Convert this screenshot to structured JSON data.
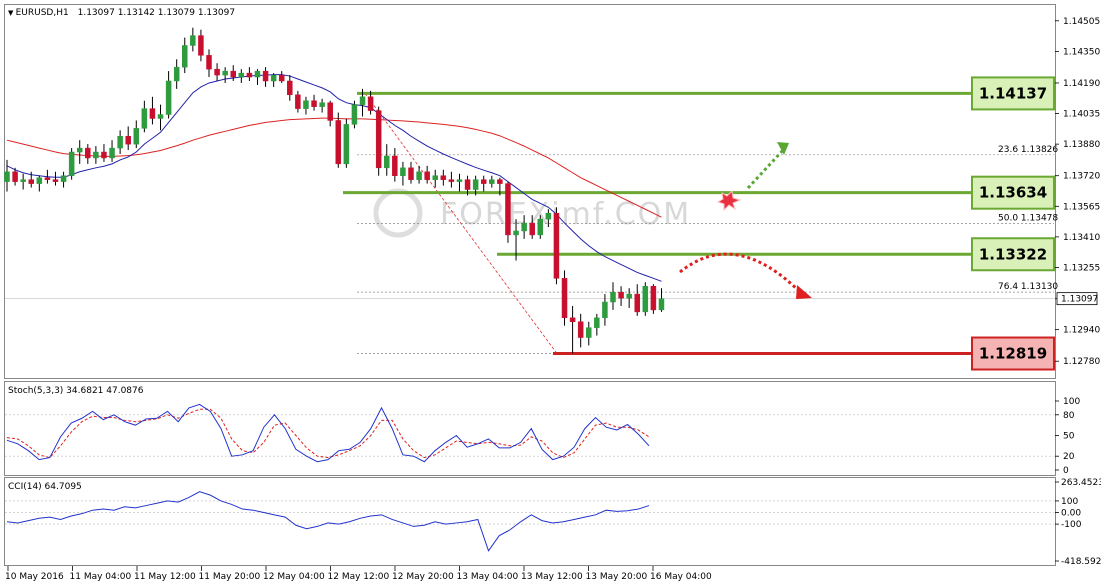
{
  "main_panel": {
    "header": {
      "symbol": "EURUSD,H1",
      "ohlc": "1.13097 1.13142 1.13079 1.13097"
    },
    "price_ticks": [
      "1.14505",
      "1.14350",
      "1.14190",
      "1.14035",
      "1.13880",
      "1.13720",
      "1.13565",
      "1.13410",
      "1.13255",
      "1.13097",
      "1.12940",
      "1.12780"
    ],
    "current_price": "1.13097",
    "fib_labels": [
      "23.6  1.13826",
      "50.0  1.13478",
      "76.4  1.13130"
    ],
    "levels": [
      {
        "label": "1.14137",
        "price": 1.14137,
        "color": "#6aa832",
        "box": "#d9f0b8"
      },
      {
        "label": "1.13634",
        "price": 1.13634,
        "color": "#6aa832",
        "box": "#d9f0b8"
      },
      {
        "label": "1.13322",
        "price": 1.13322,
        "color": "#6aa832",
        "box": "#d9f0b8"
      },
      {
        "label": "1.12819",
        "price": 1.12819,
        "color": "#cc2222",
        "box": "#f6b3b3"
      }
    ],
    "watermark": "FOREXimf.COM"
  },
  "stoch_panel": {
    "header": "Stoch(5,3,3) 34.6821 47.0876",
    "ticks": [
      "100",
      "80",
      "50",
      "20",
      "0"
    ]
  },
  "cci_panel": {
    "header": "CCI(14) 64.7095",
    "ticks": [
      "263.4523",
      "100",
      "0.00",
      "-100",
      "-418.5922"
    ]
  },
  "time_axis": [
    "10 May 2016",
    "11 May 04:00",
    "11 May 12:00",
    "11 May 20:00",
    "12 May 04:00",
    "12 May 12:00",
    "12 May 20:00",
    "13 May 04:00",
    "13 May 12:00",
    "13 May 20:00",
    "16 May 04:00"
  ],
  "colors": {
    "bull": "#2e9b3e",
    "bear": "#c8102e",
    "ma_fast": "#2222aa",
    "ma_slow": "#dd2222",
    "stoch_main": "#2233cc",
    "stoch_signal": "#dd2222",
    "cci": "#2233cc",
    "arrow_up": "#5aa832",
    "arrow_down": "#e02020"
  },
  "chart_data": {
    "type": "candlestick",
    "candles": [
      [
        1.1369,
        1.138,
        1.1364,
        1.1374
      ],
      [
        1.1374,
        1.1376,
        1.1367,
        1.1369
      ],
      [
        1.1369,
        1.1373,
        1.1365,
        1.137
      ],
      [
        1.137,
        1.1374,
        1.1366,
        1.1368
      ],
      [
        1.1368,
        1.1372,
        1.1364,
        1.1371
      ],
      [
        1.1371,
        1.1375,
        1.1368,
        1.137
      ],
      [
        1.137,
        1.1374,
        1.1367,
        1.1369
      ],
      [
        1.1369,
        1.1374,
        1.1366,
        1.1372
      ],
      [
        1.1372,
        1.1386,
        1.137,
        1.1384
      ],
      [
        1.1384,
        1.139,
        1.1378,
        1.1386
      ],
      [
        1.1386,
        1.1388,
        1.1378,
        1.1381
      ],
      [
        1.1381,
        1.1387,
        1.1378,
        1.1384
      ],
      [
        1.1384,
        1.1388,
        1.1379,
        1.1381
      ],
      [
        1.1381,
        1.139,
        1.1379,
        1.1386
      ],
      [
        1.1386,
        1.1395,
        1.1383,
        1.1392
      ],
      [
        1.1392,
        1.1397,
        1.1385,
        1.1388
      ],
      [
        1.1388,
        1.14,
        1.1386,
        1.1396
      ],
      [
        1.1396,
        1.141,
        1.1394,
        1.1406
      ],
      [
        1.1406,
        1.1412,
        1.1398,
        1.1401
      ],
      [
        1.1401,
        1.1408,
        1.1395,
        1.1403
      ],
      [
        1.1403,
        1.1425,
        1.1401,
        1.142
      ],
      [
        1.142,
        1.1431,
        1.1416,
        1.1427
      ],
      [
        1.1427,
        1.1442,
        1.1424,
        1.1438
      ],
      [
        1.1438,
        1.1447,
        1.1435,
        1.1443
      ],
      [
        1.1443,
        1.1446,
        1.143,
        1.1433
      ],
      [
        1.1433,
        1.1436,
        1.1422,
        1.1426
      ],
      [
        1.1426,
        1.1429,
        1.142,
        1.1423
      ],
      [
        1.1423,
        1.1427,
        1.1419,
        1.1425
      ],
      [
        1.1425,
        1.1428,
        1.142,
        1.1422
      ],
      [
        1.1422,
        1.1426,
        1.1419,
        1.1424
      ],
      [
        1.1424,
        1.1427,
        1.142,
        1.1422
      ],
      [
        1.1422,
        1.1426,
        1.1418,
        1.1425
      ],
      [
        1.1425,
        1.1427,
        1.1417,
        1.142
      ],
      [
        1.142,
        1.1424,
        1.1417,
        1.1423
      ],
      [
        1.1423,
        1.1425,
        1.1419,
        1.142
      ],
      [
        1.142,
        1.1423,
        1.141,
        1.1413
      ],
      [
        1.1413,
        1.1415,
        1.1404,
        1.1406
      ],
      [
        1.1406,
        1.1412,
        1.1403,
        1.141
      ],
      [
        1.141,
        1.1413,
        1.1405,
        1.1407
      ],
      [
        1.1407,
        1.1411,
        1.1404,
        1.1409
      ],
      [
        1.1409,
        1.141,
        1.1397,
        1.14
      ],
      [
        1.14,
        1.1404,
        1.1376,
        1.1378
      ],
      [
        1.1378,
        1.1401,
        1.1376,
        1.1398
      ],
      [
        1.1398,
        1.141,
        1.1396,
        1.1408
      ],
      [
        1.1408,
        1.1416,
        1.1402,
        1.1412
      ],
      [
        1.1412,
        1.1415,
        1.1403,
        1.1405
      ],
      [
        1.1405,
        1.1407,
        1.1372,
        1.1376
      ],
      [
        1.1376,
        1.1388,
        1.1372,
        1.1382
      ],
      [
        1.1382,
        1.1386,
        1.1369,
        1.1372
      ],
      [
        1.1372,
        1.1379,
        1.1367,
        1.1376
      ],
      [
        1.1376,
        1.1379,
        1.1368,
        1.137
      ],
      [
        1.137,
        1.1377,
        1.1368,
        1.1374
      ],
      [
        1.1374,
        1.1377,
        1.1368,
        1.137
      ],
      [
        1.137,
        1.1375,
        1.1366,
        1.1372
      ],
      [
        1.1372,
        1.1375,
        1.1367,
        1.137
      ],
      [
        1.137,
        1.1374,
        1.1366,
        1.1369
      ],
      [
        1.1369,
        1.1373,
        1.1364,
        1.137
      ],
      [
        1.137,
        1.1372,
        1.1362,
        1.1365
      ],
      [
        1.1365,
        1.1372,
        1.1362,
        1.137
      ],
      [
        1.137,
        1.1372,
        1.1364,
        1.1368
      ],
      [
        1.1368,
        1.1372,
        1.1366,
        1.137
      ],
      [
        1.137,
        1.1371,
        1.1362,
        1.1368
      ],
      [
        1.1368,
        1.1369,
        1.1338,
        1.1342
      ],
      [
        1.1342,
        1.135,
        1.1329,
        1.1344
      ],
      [
        1.1344,
        1.1352,
        1.134,
        1.1348
      ],
      [
        1.1348,
        1.1352,
        1.134,
        1.1342
      ],
      [
        1.1342,
        1.1352,
        1.134,
        1.135
      ],
      [
        1.135,
        1.1355,
        1.1346,
        1.1353
      ],
      [
        1.1353,
        1.1356,
        1.1317,
        1.132
      ],
      [
        1.132,
        1.1324,
        1.1296,
        1.13
      ],
      [
        1.13,
        1.1306,
        1.1282,
        1.1298
      ],
      [
        1.1298,
        1.1302,
        1.1285,
        1.129
      ],
      [
        1.129,
        1.1298,
        1.1286,
        1.1295
      ],
      [
        1.1295,
        1.1302,
        1.1291,
        1.13
      ],
      [
        1.13,
        1.1312,
        1.1296,
        1.1308
      ],
      [
        1.1308,
        1.1318,
        1.1304,
        1.1313
      ],
      [
        1.1313,
        1.1316,
        1.1306,
        1.131
      ],
      [
        1.131,
        1.1315,
        1.1305,
        1.1312
      ],
      [
        1.1312,
        1.1317,
        1.1301,
        1.1303
      ],
      [
        1.1303,
        1.1318,
        1.1301,
        1.1316
      ],
      [
        1.1316,
        1.1317,
        1.1302,
        1.1304
      ],
      [
        1.1304,
        1.1315,
        1.1303,
        1.13097
      ]
    ],
    "ma_fast": [
      1.1377,
      1.1375,
      1.13735,
      1.13725,
      1.1372,
      1.13715,
      1.13712,
      1.13712,
      1.13725,
      1.1374,
      1.1375,
      1.1376,
      1.13768,
      1.1378,
      1.138,
      1.13815,
      1.1384,
      1.1388,
      1.1391,
      1.1394,
      1.1399,
      1.1404,
      1.1409,
      1.1414,
      1.1417,
      1.1419,
      1.142,
      1.1421,
      1.14215,
      1.1422,
      1.14225,
      1.14228,
      1.1423,
      1.14232,
      1.14232,
      1.14225,
      1.1421,
      1.14195,
      1.1418,
      1.14165,
      1.14145,
      1.1411,
      1.1409,
      1.1408,
      1.14075,
      1.14065,
      1.14035,
      1.14005,
      1.13975,
      1.1395,
      1.1392,
      1.13895,
      1.1387,
      1.1385,
      1.1383,
      1.13812,
      1.13795,
      1.13778,
      1.13762,
      1.13748,
      1.13735,
      1.1372,
      1.1369,
      1.1366,
      1.1363,
      1.136,
      1.1358,
      1.1356,
      1.13525,
      1.1348,
      1.1344,
      1.134,
      1.13365,
      1.13335,
      1.1331,
      1.1329,
      1.1327,
      1.1325,
      1.1323,
      1.13215,
      1.132,
      1.13185
    ],
    "ma_slow": [
      1.139,
      1.1389,
      1.1388,
      1.1387,
      1.1386,
      1.1385,
      1.1384,
      1.13832,
      1.13828,
      1.13825,
      1.13822,
      1.1382,
      1.13818,
      1.13818,
      1.1382,
      1.13822,
      1.13826,
      1.13832,
      1.1384,
      1.13848,
      1.1386,
      1.13872,
      1.13885,
      1.139,
      1.13912,
      1.13925,
      1.13935,
      1.13945,
      1.13955,
      1.13965,
      1.13975,
      1.13982,
      1.1399,
      1.13995,
      1.14,
      1.14004,
      1.14006,
      1.14008,
      1.1401,
      1.14012,
      1.14012,
      1.1401,
      1.14008,
      1.14008,
      1.14008,
      1.14006,
      1.14004,
      1.14002,
      1.14,
      1.13998,
      1.13995,
      1.13992,
      1.13988,
      1.13984,
      1.1398,
      1.13975,
      1.1397,
      1.13963,
      1.13955,
      1.13945,
      1.13935,
      1.13922,
      1.13905,
      1.13888,
      1.1387,
      1.1385,
      1.1383,
      1.1381,
      1.13785,
      1.1376,
      1.13735,
      1.1371,
      1.1369,
      1.1367,
      1.1365,
      1.1363,
      1.1361,
      1.1359,
      1.1357,
      1.1355,
      1.1353,
      1.1351
    ],
    "stoch_main": [
      43,
      38,
      28,
      15,
      18,
      48,
      68,
      75,
      85,
      73,
      80,
      70,
      65,
      74,
      75,
      85,
      70,
      90,
      95,
      85,
      60,
      20,
      22,
      28,
      62,
      80,
      60,
      30,
      20,
      12,
      15,
      28,
      30,
      40,
      60,
      90,
      60,
      22,
      20,
      12,
      28,
      40,
      50,
      33,
      38,
      45,
      32,
      32,
      40,
      60,
      30,
      15,
      20,
      33,
      60,
      76,
      62,
      58,
      66,
      52,
      35
    ],
    "stoch_signal": [
      47,
      45,
      35,
      22,
      18,
      35,
      55,
      70,
      78,
      76,
      76,
      72,
      70,
      72,
      74,
      80,
      75,
      82,
      88,
      88,
      75,
      45,
      28,
      25,
      40,
      65,
      68,
      50,
      32,
      20,
      18,
      22,
      28,
      35,
      50,
      72,
      72,
      45,
      28,
      18,
      22,
      32,
      42,
      40,
      38,
      40,
      38,
      35,
      36,
      48,
      42,
      25,
      18,
      25,
      45,
      65,
      68,
      62,
      62,
      58,
      48
    ],
    "cci": [
      -80,
      -90,
      -70,
      -50,
      -40,
      -60,
      -30,
      -10,
      20,
      30,
      20,
      50,
      40,
      60,
      80,
      100,
      90,
      130,
      180,
      150,
      100,
      70,
      30,
      20,
      0,
      -20,
      -40,
      -110,
      -140,
      -120,
      -90,
      -100,
      -80,
      -50,
      -30,
      -20,
      -60,
      -90,
      -120,
      -110,
      -80,
      -100,
      -90,
      -80,
      -60,
      -330,
      -200,
      -150,
      -80,
      -20,
      -70,
      -90,
      -80,
      -60,
      -40,
      -20,
      20,
      10,
      15,
      30,
      60
    ],
    "price_range": [
      1.127,
      1.1458
    ],
    "stoch_range": [
      0,
      100
    ],
    "cci_range": [
      -418.5922,
      263.4523
    ]
  }
}
